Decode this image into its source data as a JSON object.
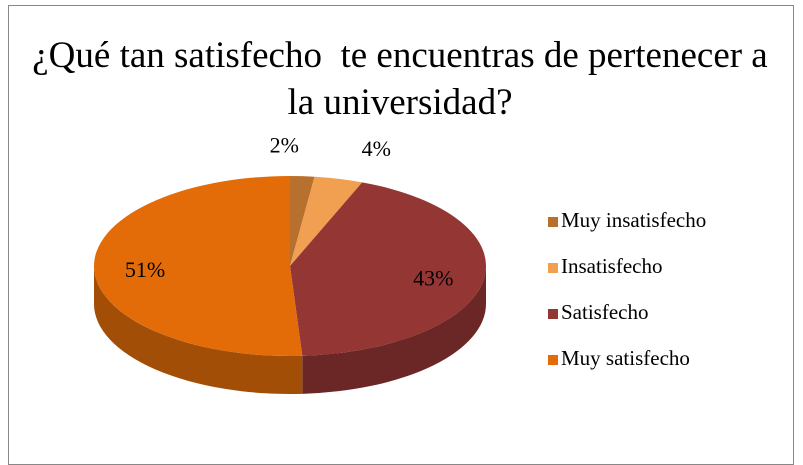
{
  "chart_data": {
    "type": "pie",
    "title": "¿Qué tan satisfecho  te encuentras de pertenecer a la universidad?",
    "categories": [
      "Muy insatisfecho",
      "Insatisfecho",
      "Satisfecho",
      "Muy satisfecho"
    ],
    "values": [
      2,
      4,
      43,
      51
    ],
    "value_labels": [
      "2%",
      "4%",
      "43%",
      "51%"
    ],
    "colors": [
      "#b8702e",
      "#f0a050",
      "#943634",
      "#e36c09"
    ],
    "legend": "right"
  }
}
